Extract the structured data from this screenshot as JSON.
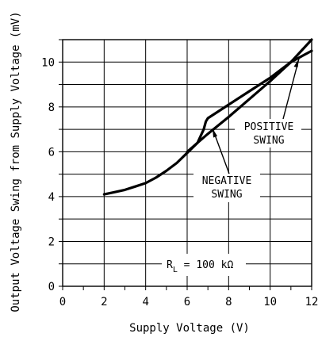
{
  "chart_data": {
    "type": "line",
    "title": "",
    "xlabel": "Supply Voltage (V)",
    "ylabel": "Output Voltage Swing from Supply Voltage (mV)",
    "xlim": [
      0,
      12
    ],
    "ylim": [
      0,
      11
    ],
    "x_ticks": [
      "0",
      "2",
      "4",
      "6",
      "8",
      "10",
      "12"
    ],
    "y_ticks": [
      "0",
      "2",
      "4",
      "6",
      "8",
      "10"
    ],
    "grid": true,
    "series": [
      {
        "name": "NEGATIVE SWING",
        "x": [
          2,
          2.5,
          3,
          3.5,
          4,
          4.5,
          5,
          5.5,
          6,
          6.5,
          6.8,
          6.9,
          7,
          7.5,
          8,
          9,
          10,
          11,
          12
        ],
        "y": [
          4.1,
          4.2,
          4.3,
          4.45,
          4.6,
          4.85,
          5.15,
          5.5,
          5.95,
          6.4,
          7.0,
          7.35,
          7.5,
          7.8,
          8.1,
          8.7,
          9.3,
          10.0,
          10.5
        ]
      },
      {
        "name": "POSITIVE SWING",
        "x": [
          6,
          7,
          8,
          9,
          10,
          11,
          12
        ],
        "y": [
          6.0,
          6.8,
          7.55,
          8.35,
          9.15,
          10.0,
          11.0
        ]
      }
    ],
    "annotations": {
      "positive_line1": "POSITIVE",
      "positive_line2": "SWING",
      "negative_line1": "NEGATIVE",
      "negative_line2": "SWING",
      "condition_prefix": "R",
      "condition_subscript": "L",
      "condition_suffix": " = 100 kΩ"
    },
    "colors": {
      "line": "#000000",
      "grid": "#000000"
    }
  }
}
